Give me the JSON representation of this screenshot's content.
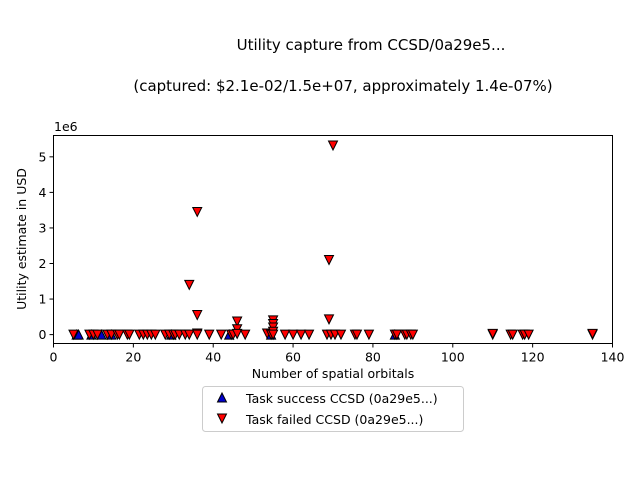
{
  "chart_data": {
    "type": "scatter",
    "title": "Utility capture from CCSD/0a29e5...",
    "subtitle": "(captured: $2.1e-02/1.5e+07, approximately 1.4e-07%)",
    "xlabel": "Number of spatial orbitals",
    "ylabel": "Utility estimate in USD",
    "y_offset_label": "1e6",
    "xlim": [
      0,
      140
    ],
    "ylim": [
      -250000,
      5600000
    ],
    "x_ticks": [
      0,
      20,
      40,
      60,
      80,
      100,
      120,
      140
    ],
    "x_tick_labels": [
      "0",
      "20",
      "40",
      "60",
      "80",
      "100",
      "120",
      "140"
    ],
    "y_ticks": [
      0,
      1000000,
      2000000,
      3000000,
      4000000,
      5000000
    ],
    "y_tick_labels": [
      "0",
      "1",
      "2",
      "3",
      "4",
      "5"
    ],
    "grid": false,
    "legend_placement": "bottom-center",
    "series": [
      {
        "name": "Task success CCSD (0a29e5...)",
        "marker": "triangle-up",
        "color": "#0000cc",
        "points": [
          [
            5.8,
            0
          ],
          [
            6.3,
            0
          ],
          [
            9.5,
            0
          ],
          [
            12,
            0
          ],
          [
            14.5,
            0
          ],
          [
            29.5,
            0
          ],
          [
            44,
            0
          ],
          [
            54.5,
            0
          ],
          [
            85.5,
            0
          ]
        ]
      },
      {
        "name": "Task failed CCSD (0a29e5...)",
        "marker": "triangle-down",
        "color": "#ff0000",
        "points": [
          [
            5,
            0
          ],
          [
            9,
            0
          ],
          [
            10,
            0
          ],
          [
            11,
            0
          ],
          [
            13.5,
            0
          ],
          [
            14.5,
            0
          ],
          [
            16,
            0
          ],
          [
            16.5,
            0
          ],
          [
            18.5,
            0
          ],
          [
            19,
            0
          ],
          [
            21.5,
            0
          ],
          [
            22.5,
            0
          ],
          [
            23.5,
            0
          ],
          [
            24.5,
            0
          ],
          [
            25.5,
            0
          ],
          [
            28,
            0
          ],
          [
            29,
            0
          ],
          [
            30,
            0
          ],
          [
            30.5,
            0
          ],
          [
            31.5,
            0
          ],
          [
            33,
            0
          ],
          [
            34,
            0
          ],
          [
            34,
            1400000
          ],
          [
            36,
            3450000
          ],
          [
            36,
            550000
          ],
          [
            36,
            30000
          ],
          [
            36,
            0
          ],
          [
            39,
            0
          ],
          [
            42,
            0
          ],
          [
            44.5,
            0
          ],
          [
            45,
            0
          ],
          [
            46,
            370000
          ],
          [
            46,
            150000
          ],
          [
            46,
            20000
          ],
          [
            48,
            0
          ],
          [
            53.5,
            30000
          ],
          [
            54.5,
            0
          ],
          [
            55,
            400000
          ],
          [
            55,
            300000
          ],
          [
            55,
            200000
          ],
          [
            55,
            80000
          ],
          [
            55,
            0
          ],
          [
            58,
            0
          ],
          [
            60,
            0
          ],
          [
            62,
            0
          ],
          [
            64,
            0
          ],
          [
            68.5,
            0
          ],
          [
            69,
            2100000
          ],
          [
            69,
            430000
          ],
          [
            69.5,
            0
          ],
          [
            70,
            5320000
          ],
          [
            70.5,
            0
          ],
          [
            72,
            0
          ],
          [
            75.5,
            0
          ],
          [
            76,
            0
          ],
          [
            79,
            0
          ],
          [
            85.5,
            0
          ],
          [
            86,
            0
          ],
          [
            88,
            0
          ],
          [
            88.5,
            0
          ],
          [
            89.5,
            0
          ],
          [
            90,
            0
          ],
          [
            110,
            0
          ],
          [
            110,
            20000
          ],
          [
            114.5,
            0
          ],
          [
            115,
            0
          ],
          [
            117.5,
            0
          ],
          [
            118,
            0
          ],
          [
            119,
            0
          ],
          [
            135,
            0
          ],
          [
            135,
            20000
          ]
        ]
      }
    ]
  }
}
